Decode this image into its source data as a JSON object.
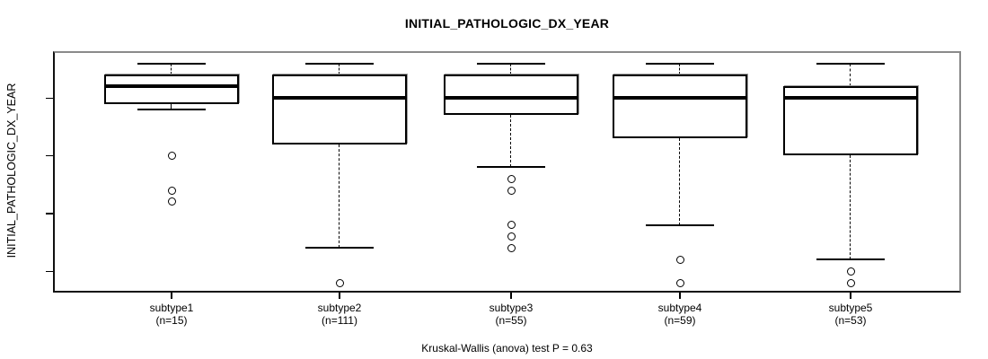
{
  "chart_data": {
    "type": "boxplot",
    "title": "INITIAL_PATHOLOGIC_DX_YEAR",
    "ylabel": "INITIAL_PATHOLOGIC_DX_YEAR",
    "footer": "Kruskal-Wallis (anova) test P = 0.63",
    "p_value": 0.63,
    "grid": false,
    "ylim": [
      1993.15,
      2014.05
    ],
    "yticks": [
      1995,
      2000,
      2005,
      2010
    ],
    "groups": [
      {
        "label": "subtype1",
        "count_label": "(n=15)",
        "whisker_low": 2009,
        "q1": 2009.5,
        "median": 2011,
        "q3": 2012,
        "whisker_high": 2013,
        "outliers": [
          2005,
          2002,
          2001
        ]
      },
      {
        "label": "subtype2",
        "count_label": "(n=111)",
        "whisker_low": 1997,
        "q1": 2006,
        "median": 2010,
        "q3": 2012,
        "whisker_high": 2013,
        "outliers": [
          1994
        ]
      },
      {
        "label": "subtype3",
        "count_label": "(n=55)",
        "whisker_low": 2004,
        "q1": 2008.5,
        "median": 2010,
        "q3": 2012,
        "whisker_high": 2013,
        "outliers": [
          2003,
          2002,
          1999,
          1998,
          1997
        ]
      },
      {
        "label": "subtype4",
        "count_label": "(n=59)",
        "whisker_low": 1999,
        "q1": 2006.5,
        "median": 2010,
        "q3": 2012,
        "whisker_high": 2013,
        "outliers": [
          1996,
          1994
        ]
      },
      {
        "label": "subtype5",
        "count_label": "(n=53)",
        "whisker_low": 1996,
        "q1": 2005,
        "median": 2010,
        "q3": 2011,
        "whisker_high": 2013,
        "outliers": [
          1995,
          1994
        ]
      }
    ]
  }
}
